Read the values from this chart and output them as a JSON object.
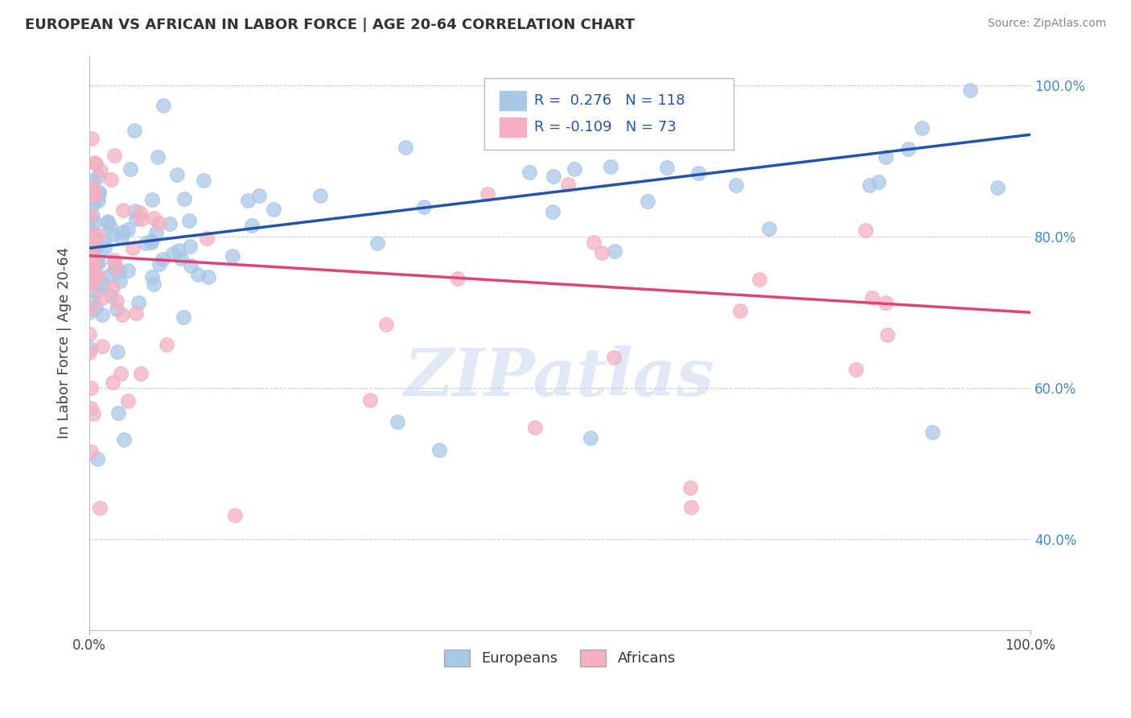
{
  "title": "EUROPEAN VS AFRICAN IN LABOR FORCE | AGE 20-64 CORRELATION CHART",
  "source": "Source: ZipAtlas.com",
  "ylabel": "In Labor Force | Age 20-64",
  "xlim": [
    0.0,
    1.0
  ],
  "ylim": [
    0.28,
    1.04
  ],
  "x_tick_positions": [
    0.0,
    1.0
  ],
  "x_tick_labels": [
    "0.0%",
    "100.0%"
  ],
  "y_tick_values": [
    0.4,
    0.6,
    0.8,
    1.0
  ],
  "y_tick_labels": [
    "40.0%",
    "60.0%",
    "80.0%",
    "100.0%"
  ],
  "background_color": "#ffffff",
  "grid_color": "#cccccc",
  "european_color": "#a8c8e8",
  "african_color": "#f4b0c0",
  "european_line_color": "#2255aa",
  "african_line_color": "#dd4477",
  "european_R": 0.276,
  "european_N": 118,
  "african_R": -0.109,
  "african_N": 73,
  "watermark": "ZIPatlas",
  "eu_line_y0": 0.785,
  "eu_line_y1": 0.935,
  "af_line_y0": 0.775,
  "af_line_y1": 0.7
}
